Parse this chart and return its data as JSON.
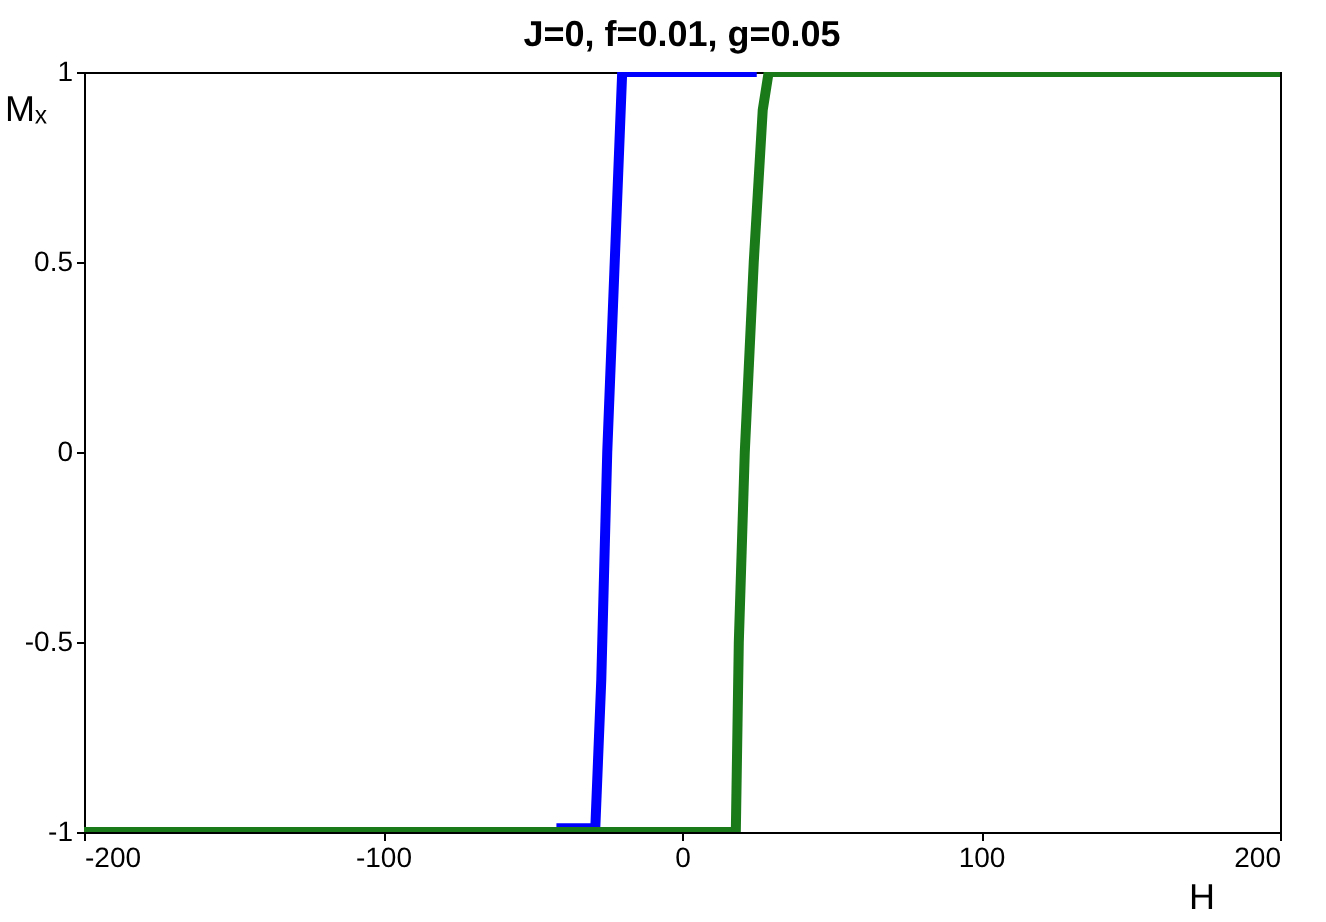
{
  "chart_data": {
    "type": "line",
    "title": "J=0, f=0.01, g=0.05",
    "xlabel": "H",
    "ylabel": "Mₓ",
    "xlim": [
      -200,
      200
    ],
    "ylim": [
      -1,
      1
    ],
    "xticks": [
      -200,
      -100,
      0,
      100,
      200
    ],
    "yticks": [
      -1,
      -0.5,
      0,
      0.5,
      1
    ],
    "grid": false,
    "legend": false,
    "line_style": "solid",
    "series": [
      {
        "color": "#0000ff",
        "x": [
          -42,
          -29,
          -27,
          -25,
          -22,
          -20,
          25
        ],
        "values": [
          -0.99,
          -0.99,
          -0.6,
          0.0,
          0.6,
          1,
          1
        ]
      },
      {
        "color": "#1a7a1a",
        "x": [
          -200,
          18,
          19,
          21,
          24,
          27,
          29,
          200
        ],
        "values": [
          -1,
          -1,
          -0.5,
          0,
          0.5,
          0.9,
          1,
          1
        ]
      }
    ]
  }
}
